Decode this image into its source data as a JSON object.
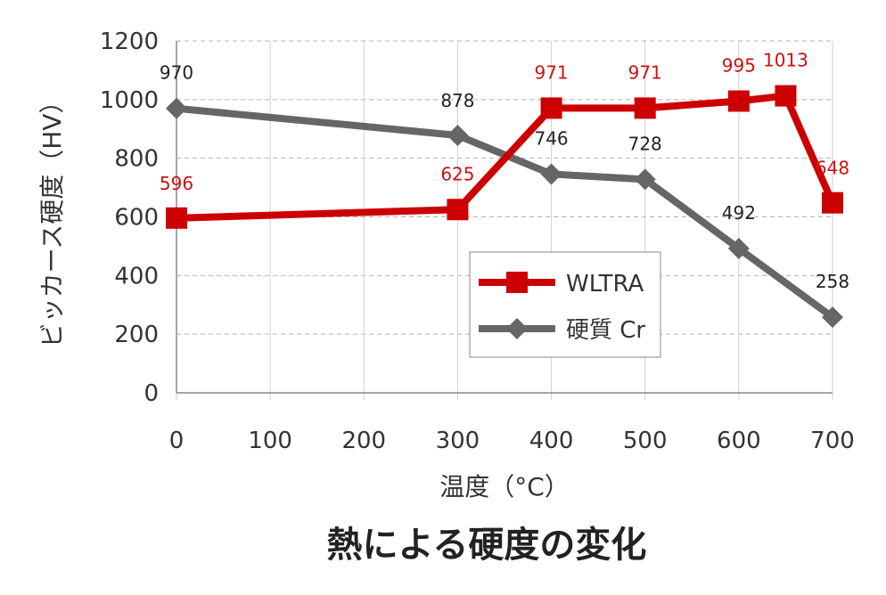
{
  "chart_data": {
    "type": "line",
    "title": "熱による硬度の変化",
    "xlabel": "温度（°C）",
    "ylabel": "ビッカース硬度（HV）",
    "xlim": [
      0,
      700
    ],
    "ylim": [
      0,
      1200
    ],
    "x_ticks": [
      0,
      100,
      200,
      300,
      400,
      500,
      600,
      700
    ],
    "y_ticks": [
      0,
      200,
      400,
      600,
      800,
      1000,
      1200
    ],
    "grid": "horizontal dashed",
    "legend_position": "center-right",
    "series": [
      {
        "name": "WLTRA",
        "color": "#cc0000",
        "marker": "square",
        "x": [
          0,
          300,
          400,
          500,
          600,
          650,
          700
        ],
        "values": [
          596,
          625,
          971,
          971,
          995,
          1013,
          648
        ]
      },
      {
        "name": "硬質 Cr",
        "color": "#666666",
        "marker": "diamond",
        "x": [
          0,
          300,
          400,
          500,
          600,
          700
        ],
        "values": [
          970,
          878,
          746,
          728,
          492,
          258
        ]
      }
    ]
  }
}
